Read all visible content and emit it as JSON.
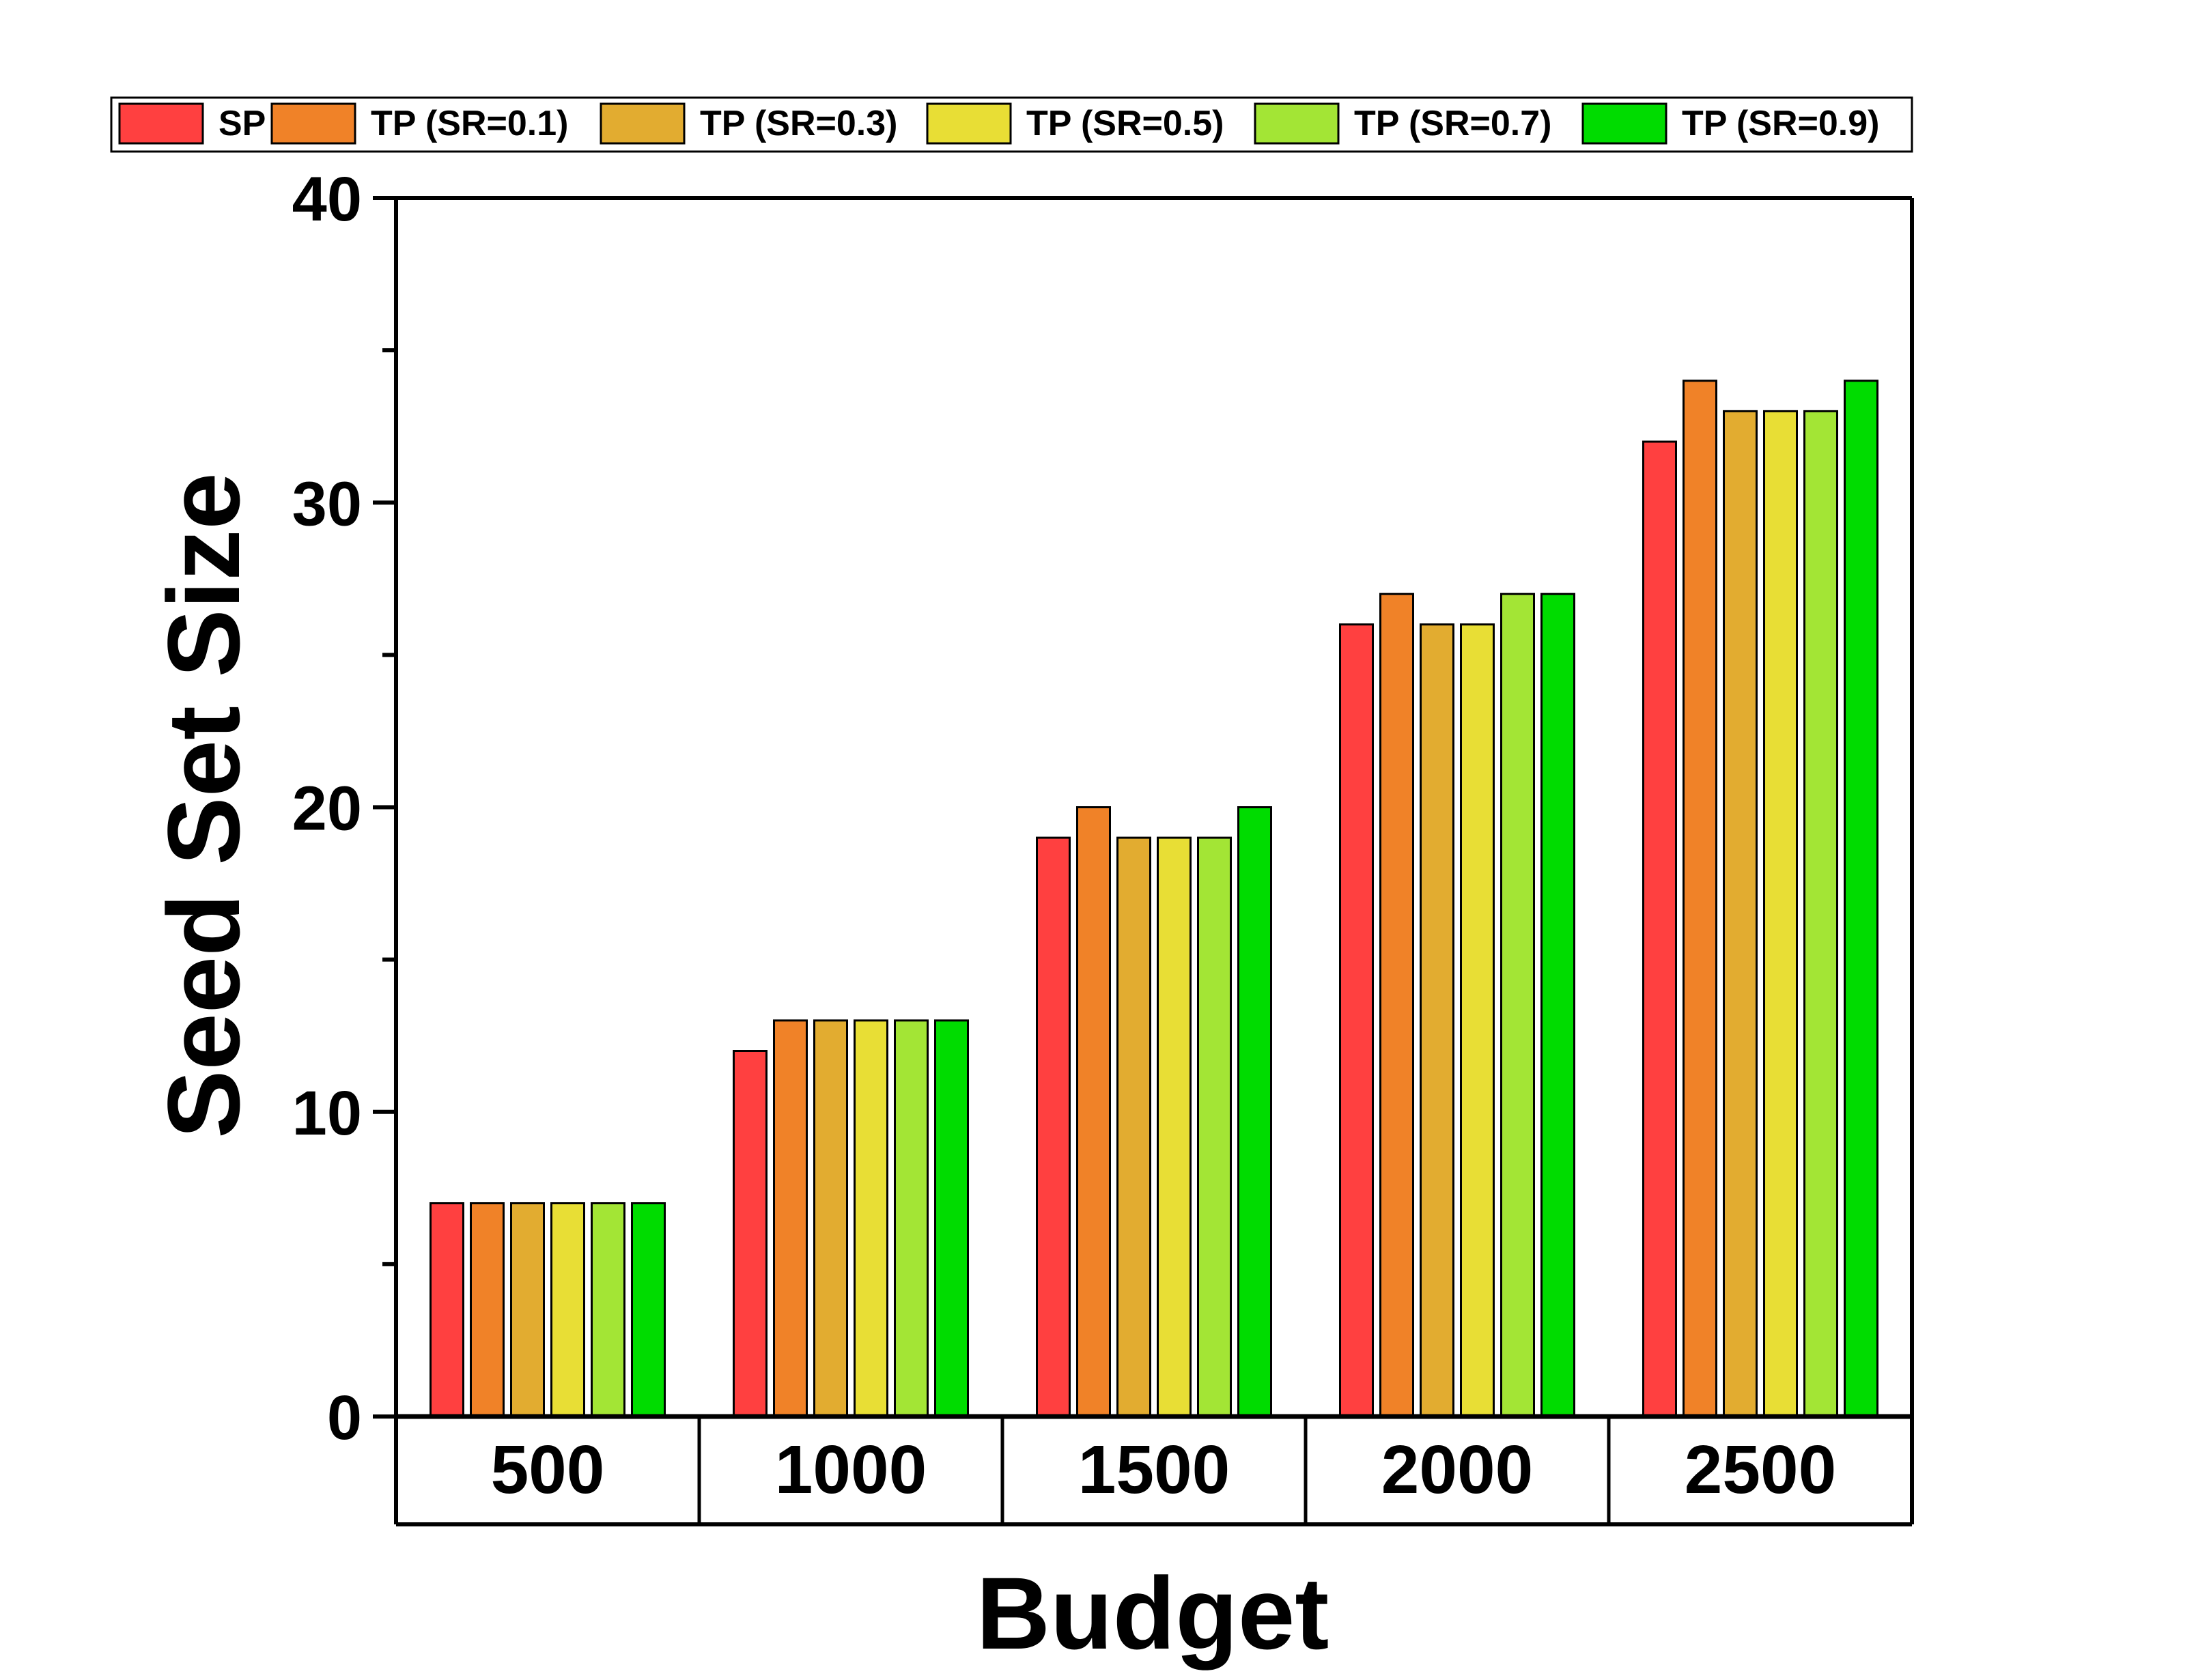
{
  "chart_data": {
    "type": "bar",
    "categories": [
      "500",
      "1000",
      "1500",
      "2000",
      "2500"
    ],
    "series": [
      {
        "name": "SP",
        "color": "#FF4040",
        "values": [
          7,
          12,
          19,
          26,
          32
        ]
      },
      {
        "name": "TP (SR=0.1)",
        "color": "#F08228",
        "values": [
          7,
          13,
          20,
          27,
          34
        ]
      },
      {
        "name": "TP (SR=0.3)",
        "color": "#E2AC30",
        "values": [
          7,
          13,
          19,
          26,
          33
        ]
      },
      {
        "name": "TP (SR=0.5)",
        "color": "#E8DE35",
        "values": [
          7,
          13,
          19,
          26,
          33
        ]
      },
      {
        "name": "TP (SR=0.7)",
        "color": "#A3E535",
        "values": [
          7,
          13,
          19,
          27,
          33
        ]
      },
      {
        "name": "TP (SR=0.9)",
        "color": "#00DC00",
        "values": [
          7,
          13,
          20,
          27,
          34
        ]
      }
    ],
    "xlabel": "Budget",
    "ylabel": "Seed Set Size",
    "ylim": [
      0,
      40
    ],
    "yticks": [
      "0",
      "10",
      "20",
      "30",
      "40"
    ],
    "legend_position": "top",
    "grid": false
  }
}
